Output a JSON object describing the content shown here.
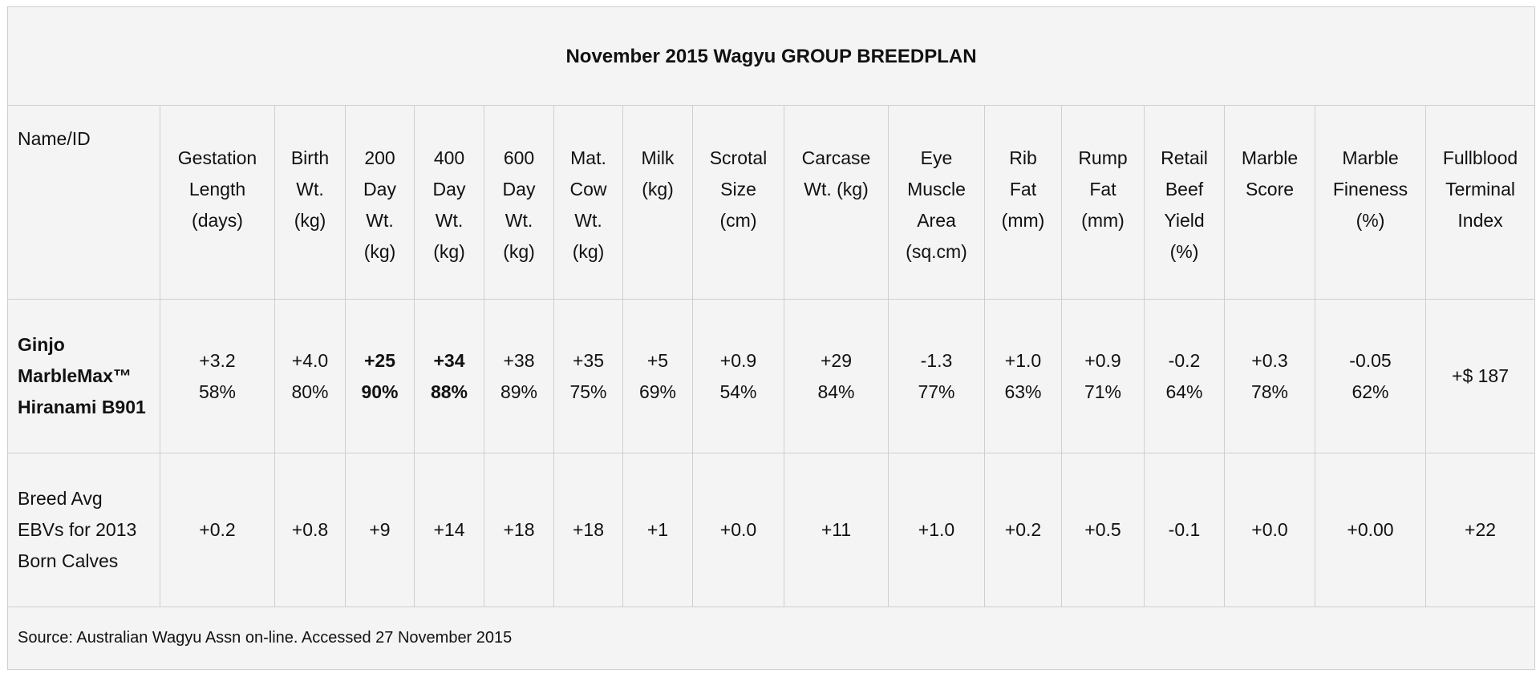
{
  "title": "November 2015 Wagyu GROUP BREEDPLAN",
  "header": {
    "name": "Name/ID",
    "columns": [
      "Gestation Length (days)",
      "Birth Wt. (kg)",
      "200 Day Wt. (kg)",
      "400 Day Wt. (kg)",
      "600 Day Wt. (kg)",
      "Mat. Cow Wt. (kg)",
      "Milk (kg)",
      "Scrotal Size (cm)",
      "Carcase Wt. (kg)",
      "Eye Muscle Area (sq.cm)",
      "Rib Fat (mm)",
      "Rump Fat (mm)",
      "Retail Beef Yield (%)",
      "Marble Score",
      "Marble Fineness (%)",
      "Fullblood Terminal Index"
    ]
  },
  "rows": [
    {
      "name": "Ginjo MarbleMax™ Hiranami B901",
      "name_bold": true,
      "cells": [
        {
          "ebv": "+3.2",
          "accuracy": "58%"
        },
        {
          "ebv": "+4.0",
          "accuracy": "80%"
        },
        {
          "ebv": "+25",
          "accuracy": "90%",
          "bold": true
        },
        {
          "ebv": "+34",
          "accuracy": "88%",
          "bold": true
        },
        {
          "ebv": "+38",
          "accuracy": "89%"
        },
        {
          "ebv": "+35",
          "accuracy": "75%"
        },
        {
          "ebv": "+5",
          "accuracy": "69%"
        },
        {
          "ebv": "+0.9",
          "accuracy": "54%"
        },
        {
          "ebv": "+29",
          "accuracy": "84%"
        },
        {
          "ebv": "-1.3",
          "accuracy": "77%"
        },
        {
          "ebv": "+1.0",
          "accuracy": "63%"
        },
        {
          "ebv": "+0.9",
          "accuracy": "71%"
        },
        {
          "ebv": "-0.2",
          "accuracy": "64%"
        },
        {
          "ebv": "+0.3",
          "accuracy": "78%"
        },
        {
          "ebv": "-0.05",
          "accuracy": "62%"
        },
        {
          "ebv": "+$ 187"
        }
      ]
    },
    {
      "name": "Breed Avg EBVs for 2013 Born Calves",
      "cells": [
        {
          "ebv": "+0.2"
        },
        {
          "ebv": "+0.8"
        },
        {
          "ebv": "+9"
        },
        {
          "ebv": "+14"
        },
        {
          "ebv": "+18"
        },
        {
          "ebv": "+18"
        },
        {
          "ebv": "+1"
        },
        {
          "ebv": "+0.0"
        },
        {
          "ebv": "+11"
        },
        {
          "ebv": "+1.0"
        },
        {
          "ebv": "+0.2"
        },
        {
          "ebv": "+0.5"
        },
        {
          "ebv": "-0.1"
        },
        {
          "ebv": "+0.0"
        },
        {
          "ebv": "+0.00"
        },
        {
          "ebv": "+22"
        }
      ]
    }
  ],
  "source": "Source: Australian Wagyu Assn on-line. Accessed 27 November 2015"
}
